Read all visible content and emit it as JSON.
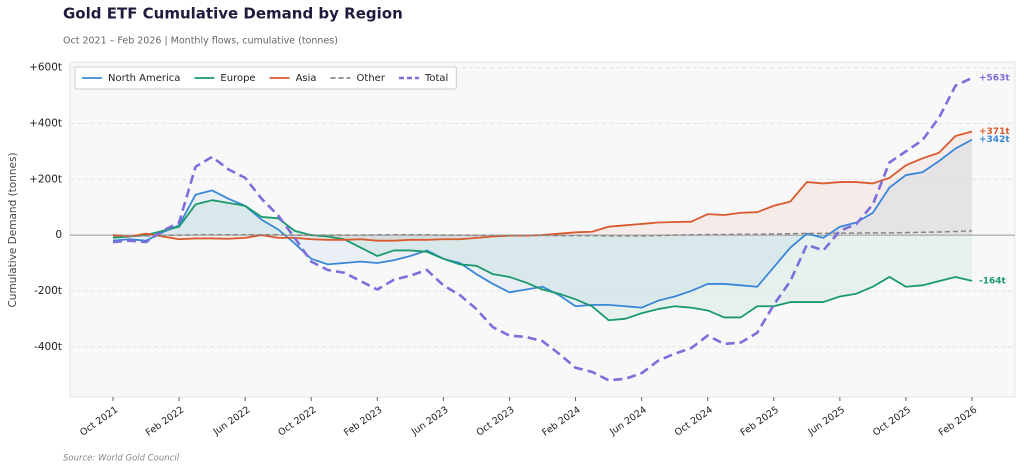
{
  "chart_data": {
    "type": "line",
    "title": "Gold ETF Cumulative Demand by Region",
    "subtitle": "Oct 2021 – Feb 2026  |  Monthly flows, cumulative (tonnes)",
    "y_label": "Cumulative Demand (tonnes)",
    "source": "Source: World Gold Council",
    "categories": [
      "Oct 2021",
      null,
      null,
      null,
      "Feb 2022",
      null,
      null,
      null,
      "Jun 2022",
      null,
      null,
      null,
      "Oct 2022",
      null,
      null,
      null,
      "Feb 2023",
      null,
      null,
      null,
      "Jun 2023",
      null,
      null,
      null,
      "Oct 2023",
      null,
      null,
      null,
      "Feb 2024",
      null,
      null,
      null,
      "Jun 2024",
      null,
      null,
      null,
      "Oct 2024",
      null,
      null,
      null,
      "Feb 2025",
      null,
      null,
      null,
      "Jun 2025",
      null,
      null,
      null,
      "Oct 2025",
      null,
      null,
      null,
      "Feb 2026"
    ],
    "ylim": [
      -580,
      620
    ],
    "yticks": [
      {
        "value": -400,
        "label": "-400t"
      },
      {
        "value": -200,
        "label": "-200t"
      },
      0,
      {
        "value": 200,
        "label": "+200t"
      },
      {
        "value": 400,
        "label": "+400t"
      },
      {
        "value": 600,
        "label": "+600t"
      }
    ],
    "grid": true,
    "legend": "upper left",
    "series": [
      {
        "name": "North America",
        "color": "#3a87d8",
        "fill": true,
        "dash": false,
        "values": [
          -20,
          -15,
          -20,
          10,
          35,
          145,
          160,
          130,
          105,
          55,
          20,
          -30,
          -85,
          -105,
          -100,
          -95,
          -100,
          -90,
          -75,
          -55,
          -85,
          -100,
          -140,
          -175,
          -205,
          -195,
          -185,
          -215,
          -255,
          -250,
          -250,
          -255,
          -260,
          -235,
          -220,
          -200,
          -175,
          -175,
          -180,
          -185,
          -115,
          -45,
          5,
          -10,
          30,
          45,
          80,
          170,
          215,
          225,
          265,
          310,
          342
        ],
        "value_labels": [
          null,
          null,
          null,
          null,
          null,
          null,
          null,
          null,
          null,
          null,
          null,
          null,
          null,
          null,
          null,
          null,
          null,
          null,
          null,
          null,
          null,
          null,
          null,
          null,
          null,
          null,
          null,
          null,
          null,
          null,
          null,
          null,
          null,
          null,
          null,
          null,
          null,
          null,
          null,
          null,
          null,
          null,
          null,
          null,
          null,
          null,
          null,
          null,
          null,
          null,
          null,
          null,
          "+342t"
        ]
      },
      {
        "name": "Europe",
        "color": "#1a9a6c",
        "fill": true,
        "dash": false,
        "values": [
          -10,
          -5,
          0,
          15,
          30,
          110,
          125,
          115,
          105,
          65,
          60,
          15,
          0,
          -5,
          -15,
          -45,
          -75,
          -55,
          -55,
          -60,
          -85,
          -105,
          -110,
          -140,
          -150,
          -170,
          -195,
          -210,
          -230,
          -255,
          -305,
          -300,
          -280,
          -265,
          -255,
          -260,
          -270,
          -295,
          -295,
          -255,
          -255,
          -240,
          -240,
          -240,
          -220,
          -210,
          -185,
          -150,
          -185,
          -180,
          -165,
          -150,
          -164
        ],
        "value_labels": [
          null,
          null,
          null,
          null,
          null,
          null,
          null,
          null,
          null,
          null,
          null,
          null,
          null,
          null,
          null,
          null,
          null,
          null,
          null,
          null,
          null,
          null,
          null,
          null,
          null,
          null,
          null,
          null,
          null,
          null,
          null,
          null,
          null,
          null,
          null,
          null,
          null,
          null,
          null,
          null,
          null,
          null,
          null,
          null,
          null,
          null,
          null,
          null,
          null,
          null,
          null,
          null,
          "-164t"
        ]
      },
      {
        "name": "Asia",
        "color": "#d95a2e",
        "fill": true,
        "dash": false,
        "values": [
          0,
          -5,
          5,
          -5,
          -15,
          -12,
          -12,
          -13,
          -10,
          0,
          -10,
          -10,
          -15,
          -17,
          -17,
          -15,
          -20,
          -20,
          -17,
          -17,
          -15,
          -15,
          -10,
          -5,
          -2,
          -2,
          0,
          5,
          10,
          12,
          30,
          35,
          40,
          45,
          47,
          48,
          75,
          72,
          80,
          82,
          105,
          120,
          190,
          185,
          190,
          190,
          185,
          205,
          250,
          275,
          295,
          355,
          371
        ],
        "value_labels": [
          null,
          null,
          null,
          null,
          null,
          null,
          null,
          null,
          null,
          null,
          null,
          null,
          null,
          null,
          null,
          null,
          null,
          null,
          null,
          null,
          null,
          null,
          null,
          null,
          null,
          null,
          null,
          null,
          null,
          null,
          null,
          null,
          null,
          null,
          null,
          null,
          null,
          null,
          null,
          null,
          null,
          null,
          null,
          null,
          null,
          null,
          null,
          null,
          null,
          null,
          null,
          null,
          "+371t"
        ]
      },
      {
        "name": "Other",
        "color": "#888888",
        "fill": false,
        "dash": true,
        "values": [
          -5,
          -4,
          -3,
          -2,
          0,
          1,
          1,
          1,
          1,
          1,
          1,
          0,
          0,
          0,
          0,
          0,
          1,
          1,
          1,
          1,
          0,
          0,
          -1,
          -1,
          -1,
          -1,
          -1,
          -2,
          -2,
          -2,
          -3,
          -3,
          -3,
          -2,
          0,
          1,
          2,
          2,
          3,
          3,
          4,
          5,
          6,
          6,
          7,
          7,
          8,
          8,
          9,
          10,
          11,
          13,
          15
        ]
      },
      {
        "name": "Total",
        "color": "#7b6fdc",
        "fill": false,
        "dash": true,
        "values": [
          -25,
          -20,
          -25,
          15,
          45,
          245,
          280,
          235,
          205,
          130,
          70,
          -10,
          -95,
          -125,
          -135,
          -165,
          -195,
          -160,
          -145,
          -125,
          -180,
          -215,
          -265,
          -330,
          -360,
          -365,
          -380,
          -425,
          -475,
          -490,
          -520,
          -515,
          -495,
          -450,
          -425,
          -405,
          -360,
          -390,
          -385,
          -350,
          -250,
          -165,
          -35,
          -55,
          15,
          40,
          110,
          260,
          300,
          340,
          420,
          535,
          563
        ],
        "value_labels": [
          null,
          null,
          null,
          null,
          null,
          null,
          null,
          null,
          null,
          null,
          null,
          null,
          null,
          null,
          null,
          null,
          null,
          null,
          null,
          null,
          null,
          null,
          null,
          null,
          null,
          null,
          null,
          null,
          null,
          null,
          null,
          null,
          null,
          null,
          null,
          null,
          null,
          null,
          null,
          null,
          null,
          null,
          null,
          null,
          null,
          null,
          null,
          null,
          null,
          null,
          null,
          null,
          "+563t"
        ]
      }
    ]
  }
}
